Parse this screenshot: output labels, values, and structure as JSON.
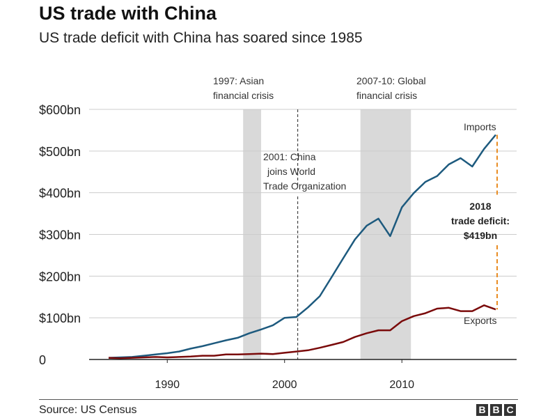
{
  "title": "US trade with China",
  "subtitle": "US trade deficit with China has soared since 1985",
  "source": "Source: US Census",
  "logo_letters": [
    "B",
    "B",
    "C"
  ],
  "colors": {
    "imports": "#1d5a7e",
    "exports": "#7a0a0a",
    "deficit": "#e98c22",
    "shade": "#d9d9d9",
    "grid": "#cccccc"
  },
  "chart_data": {
    "type": "line",
    "xlim": [
      1985,
      2018
    ],
    "ylim": [
      0,
      600
    ],
    "y_ticks": [
      0,
      100,
      200,
      300,
      400,
      500,
      600
    ],
    "y_tick_labels": [
      "0",
      "$100bn",
      "$200bn",
      "$300bn",
      "$400bn",
      "$500bn",
      "$600bn"
    ],
    "x_ticks": [
      1990,
      2000,
      2010
    ],
    "x_tick_labels": [
      "1990",
      "2000",
      "2010"
    ],
    "x": [
      1985,
      1986,
      1987,
      1988,
      1989,
      1990,
      1991,
      1992,
      1993,
      1994,
      1995,
      1996,
      1997,
      1998,
      1999,
      2000,
      2001,
      2002,
      2003,
      2004,
      2005,
      2006,
      2007,
      2008,
      2009,
      2010,
      2011,
      2012,
      2013,
      2014,
      2015,
      2016,
      2017,
      2018
    ],
    "series": [
      {
        "name": "Imports",
        "values": [
          4,
          5,
          6,
          9,
          12,
          15,
          19,
          26,
          32,
          39,
          46,
          52,
          63,
          72,
          82,
          100,
          102,
          125,
          152,
          197,
          243,
          288,
          321,
          338,
          296,
          365,
          399,
          426,
          440,
          468,
          483,
          463,
          505,
          539
        ]
      },
      {
        "name": "Exports",
        "values": [
          4,
          3,
          4,
          5,
          6,
          5,
          6,
          7,
          9,
          9,
          12,
          12,
          13,
          14,
          13,
          16,
          19,
          22,
          28,
          35,
          42,
          54,
          63,
          70,
          70,
          92,
          104,
          111,
          122,
          124,
          116,
          116,
          130,
          120
        ]
      }
    ],
    "shaded_periods": [
      {
        "from": 1997,
        "to": 1998,
        "label_lines": [
          "1997: Asian",
          "financial crisis"
        ]
      },
      {
        "from": 2007,
        "to": 2010,
        "label_lines": [
          "2007-10: Global",
          "financial crisis"
        ]
      }
    ],
    "event_lines": [
      {
        "x": 2001,
        "label_lines": [
          "2001: China",
          "joins World",
          "Trade Organization"
        ]
      }
    ],
    "deficit_annotation": {
      "year": 2018,
      "value": 419,
      "label_lines": [
        "2018",
        "trade deficit:",
        "$419bn"
      ]
    }
  }
}
